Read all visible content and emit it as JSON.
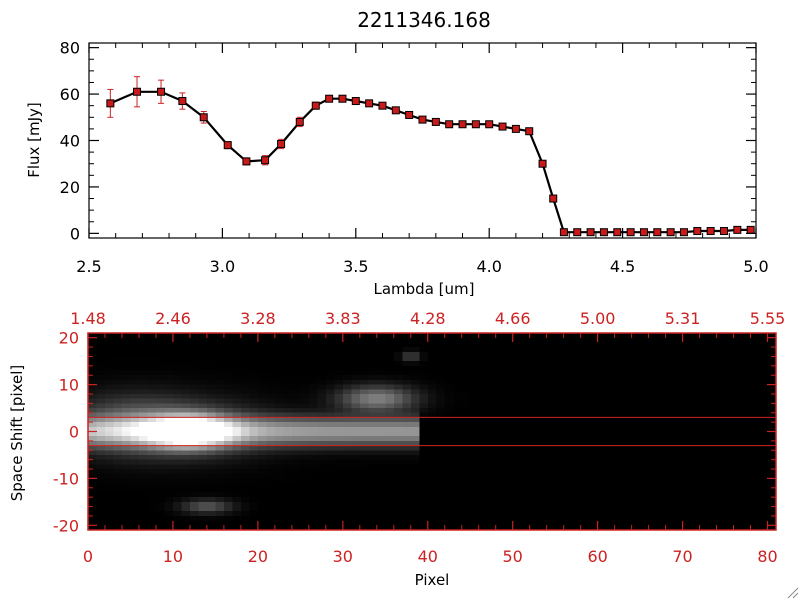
{
  "colors": {
    "line": "#000000",
    "marker": "#c81a1a",
    "errorbar": "#cc2222",
    "image_axis": "#cc2222",
    "trace": "#cc2222",
    "image_background": "#000000"
  },
  "chart_data": [
    {
      "type": "line",
      "title": "2211346.168",
      "xlabel": "Lambda [um]",
      "ylabel": "Flux [mJy]",
      "xlim": [
        2.5,
        5.0
      ],
      "ylim": [
        -2,
        82
      ],
      "xticks": [
        "2.5",
        "3.0",
        "3.5",
        "4.0",
        "4.5",
        "5.0"
      ],
      "yticks": [
        "0",
        "20",
        "40",
        "60",
        "80"
      ],
      "grid": false,
      "series": [
        {
          "x": [
            2.58,
            2.68,
            2.77,
            2.85,
            2.93,
            3.02,
            3.09,
            3.16,
            3.22,
            3.29,
            3.35,
            3.4,
            3.45,
            3.5,
            3.55,
            3.6,
            3.65,
            3.7,
            3.75,
            3.8,
            3.85,
            3.9,
            3.95,
            4.0,
            4.05,
            4.1,
            4.15,
            4.2,
            4.24,
            4.28,
            4.33,
            4.38,
            4.43,
            4.48,
            4.53,
            4.58,
            4.63,
            4.68,
            4.73,
            4.78,
            4.83,
            4.88,
            4.93,
            4.98
          ],
          "y": [
            56,
            61,
            61,
            57,
            50,
            38,
            31,
            31.5,
            38.5,
            48,
            55,
            58,
            58,
            57,
            56,
            55,
            53,
            51,
            49,
            48,
            47,
            47,
            47,
            47,
            46,
            45,
            44,
            30,
            15,
            0.5,
            0.5,
            0.5,
            0.5,
            0.5,
            0.5,
            0.5,
            0.5,
            0.5,
            0.5,
            1,
            1,
            1,
            1.5,
            1.5
          ],
          "yerr": [
            6,
            6.5,
            5,
            3.5,
            2.5,
            1.5,
            1.5,
            2,
            2,
            2,
            1.5,
            1,
            1,
            1,
            1,
            1,
            1,
            1,
            1,
            1,
            1,
            1,
            1,
            1,
            1,
            1,
            1,
            1,
            1,
            1,
            0.5,
            0.5,
            0.5,
            0.5,
            0.5,
            0.5,
            0.5,
            0.5,
            0.5,
            0.5,
            0.5,
            0.5,
            0.5,
            0.5
          ]
        }
      ]
    },
    {
      "type": "heatmap",
      "xlabel": "Pixel",
      "ylabel": "Space Shift [pixel]",
      "xlim": [
        0,
        81
      ],
      "ylim": [
        -21,
        21
      ],
      "xticks": [
        "0",
        "10",
        "20",
        "30",
        "40",
        "50",
        "60",
        "70",
        "80"
      ],
      "yticks": [
        "-20",
        "-10",
        "0",
        "10",
        "20"
      ],
      "top_xticks": [
        "1.48",
        "2.46",
        "3.28",
        "3.83",
        "4.28",
        "4.66",
        "5.00",
        "5.31",
        "5.55"
      ],
      "trace_lines": [
        3,
        -3
      ],
      "grid": false,
      "blobs": [
        {
          "x": 12,
          "y": 0,
          "sx": 3.2,
          "sy": 2.2,
          "v": 1.0
        },
        {
          "x": 10,
          "y": 0.5,
          "sx": 7,
          "sy": 4,
          "v": 0.28
        },
        {
          "x": 5,
          "y": 2,
          "sx": 5,
          "sy": 4,
          "v": 0.18
        },
        {
          "x": 34,
          "y": 7,
          "sx": 3,
          "sy": 1.8,
          "v": 0.45
        },
        {
          "x": 14,
          "y": -16,
          "sx": 2,
          "sy": 1,
          "v": 0.28
        },
        {
          "x": 38,
          "y": 16,
          "sx": 0.7,
          "sy": 0.7,
          "v": 0.22
        }
      ],
      "band": {
        "x_start": 0,
        "x_end": 39,
        "y_half_width": 2,
        "v": 0.55
      }
    }
  ]
}
